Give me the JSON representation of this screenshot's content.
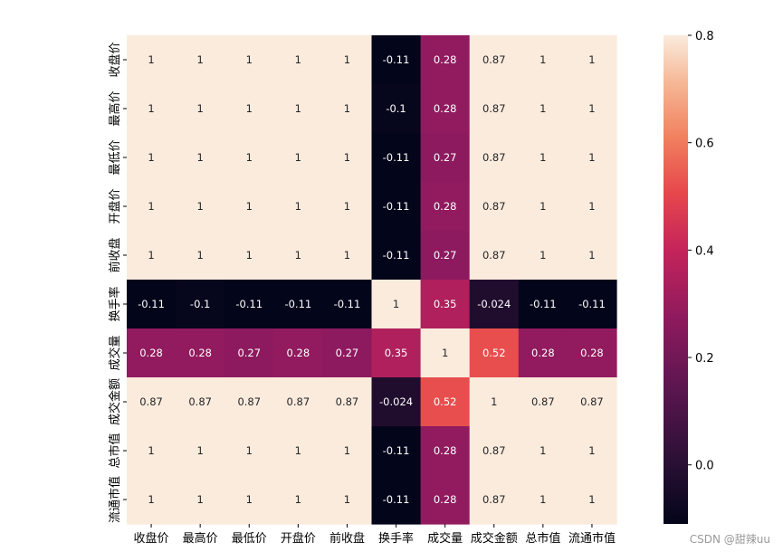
{
  "chart_data": {
    "type": "heatmap",
    "title": "",
    "xlabel": "",
    "ylabel": "",
    "x_labels": [
      "收盘价",
      "最高价",
      "最低价",
      "开盘价",
      "前收盘",
      "换手率",
      "成交量",
      "成交金额",
      "总市值",
      "流通市值"
    ],
    "y_labels": [
      "收盘价",
      "最高价",
      "最低价",
      "开盘价",
      "前收盘",
      "换手率",
      "成交量",
      "成交金额",
      "总市值",
      "流通市值"
    ],
    "matrix": [
      [
        1,
        1,
        1,
        1,
        1,
        -0.11,
        0.28,
        0.87,
        1,
        1
      ],
      [
        1,
        1,
        1,
        1,
        1,
        -0.1,
        0.28,
        0.87,
        1,
        1
      ],
      [
        1,
        1,
        1,
        1,
        1,
        -0.11,
        0.27,
        0.87,
        1,
        1
      ],
      [
        1,
        1,
        1,
        1,
        1,
        -0.11,
        0.28,
        0.87,
        1,
        1
      ],
      [
        1,
        1,
        1,
        1,
        1,
        -0.11,
        0.27,
        0.87,
        1,
        1
      ],
      [
        -0.11,
        -0.1,
        -0.11,
        -0.11,
        -0.11,
        1,
        0.35,
        -0.024,
        -0.11,
        -0.11
      ],
      [
        0.28,
        0.28,
        0.27,
        0.28,
        0.27,
        0.35,
        1,
        0.52,
        0.28,
        0.28
      ],
      [
        0.87,
        0.87,
        0.87,
        0.87,
        0.87,
        -0.024,
        0.52,
        1,
        0.87,
        0.87
      ],
      [
        1,
        1,
        1,
        1,
        1,
        -0.11,
        0.28,
        0.87,
        1,
        1
      ],
      [
        1,
        1,
        1,
        1,
        1,
        -0.11,
        0.28,
        0.87,
        1,
        1
      ]
    ],
    "annotations": [
      [
        "1",
        "1",
        "1",
        "1",
        "1",
        "-0.11",
        "0.28",
        "0.87",
        "1",
        "1"
      ],
      [
        "1",
        "1",
        "1",
        "1",
        "1",
        "-0.1",
        "0.28",
        "0.87",
        "1",
        "1"
      ],
      [
        "1",
        "1",
        "1",
        "1",
        "1",
        "-0.11",
        "0.27",
        "0.87",
        "1",
        "1"
      ],
      [
        "1",
        "1",
        "1",
        "1",
        "1",
        "-0.11",
        "0.28",
        "0.87",
        "1",
        "1"
      ],
      [
        "1",
        "1",
        "1",
        "1",
        "1",
        "-0.11",
        "0.27",
        "0.87",
        "1",
        "1"
      ],
      [
        "-0.11",
        "-0.1",
        "-0.11",
        "-0.11",
        "-0.11",
        "1",
        "0.35",
        "-0.024",
        "-0.11",
        "-0.11"
      ],
      [
        "0.28",
        "0.28",
        "0.27",
        "0.28",
        "0.27",
        "0.35",
        "1",
        "0.52",
        "0.28",
        "0.28"
      ],
      [
        "0.87",
        "0.87",
        "0.87",
        "0.87",
        "0.87",
        "-0.024",
        "0.52",
        "1",
        "0.87",
        "0.87"
      ],
      [
        "1",
        "1",
        "1",
        "1",
        "1",
        "-0.11",
        "0.28",
        "0.87",
        "1",
        "1"
      ],
      [
        "1",
        "1",
        "1",
        "1",
        "1",
        "-0.11",
        "0.28",
        "0.87",
        "1",
        "1"
      ]
    ],
    "colorbar": {
      "vmin": -0.11,
      "vmax": 0.8,
      "ticks": [
        0.0,
        0.2,
        0.4,
        0.6,
        0.8
      ],
      "tick_labels": [
        "0.0",
        "0.2",
        "0.4",
        "0.6",
        "0.8"
      ],
      "colormap": "rocket",
      "colormap_stops": [
        [
          "#03051a",
          0.0
        ],
        [
          "#2b1035",
          0.13
        ],
        [
          "#5c1650",
          0.28
        ],
        [
          "#8e1a5e",
          0.42
        ],
        [
          "#c4245a",
          0.56
        ],
        [
          "#e7484c",
          0.68
        ],
        [
          "#f1805e",
          0.79
        ],
        [
          "#f6b694",
          0.9
        ],
        [
          "#faebdd",
          1.0
        ]
      ]
    }
  },
  "watermark": "CSDN @甜辣uu"
}
